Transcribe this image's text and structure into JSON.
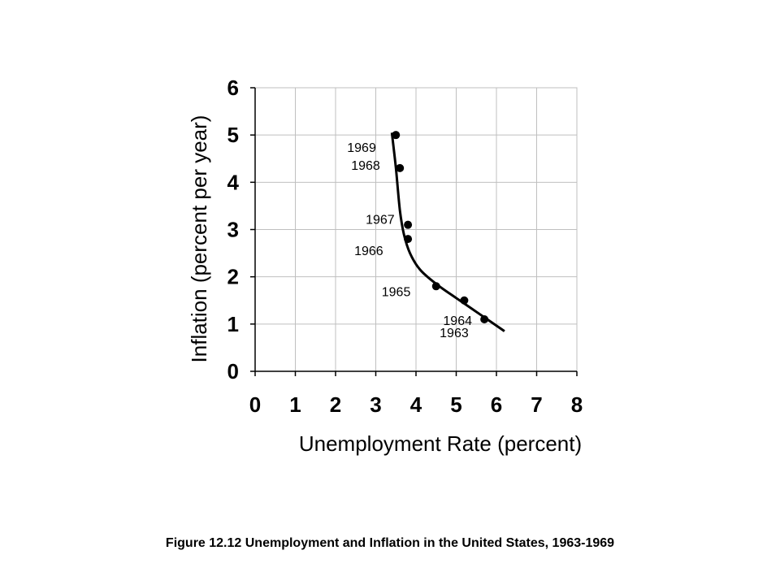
{
  "caption": "Figure 12.12 Unemployment and Inflation in the United States, 1963-1969",
  "chart_data": {
    "type": "scatter",
    "xlabel": "Unemployment Rate (percent)",
    "ylabel": "Inflation (percent per year)",
    "xlim": [
      0,
      8
    ],
    "ylim": [
      0,
      6
    ],
    "x_ticks": [
      0,
      1,
      2,
      3,
      4,
      5,
      6,
      7,
      8
    ],
    "y_ticks": [
      0,
      1,
      2,
      3,
      4,
      5,
      6
    ],
    "grid": true,
    "points": [
      {
        "label": "1963",
        "x": 5.7,
        "y": 1.1
      },
      {
        "label": "1964",
        "x": 5.2,
        "y": 1.5
      },
      {
        "label": "1965",
        "x": 4.5,
        "y": 1.8
      },
      {
        "label": "1966",
        "x": 3.8,
        "y": 2.8
      },
      {
        "label": "1967",
        "x": 3.8,
        "y": 3.1
      },
      {
        "label": "1968",
        "x": 3.6,
        "y": 4.3
      },
      {
        "label": "1969",
        "x": 3.5,
        "y": 5.0
      }
    ],
    "curve": [
      [
        3.4,
        5.05
      ],
      [
        3.5,
        4.3
      ],
      [
        3.6,
        3.4
      ],
      [
        3.7,
        2.9
      ],
      [
        3.85,
        2.5
      ],
      [
        4.1,
        2.15
      ],
      [
        4.5,
        1.85
      ],
      [
        5.0,
        1.55
      ],
      [
        5.6,
        1.2
      ],
      [
        6.2,
        0.85
      ]
    ],
    "marker_color": "#000000",
    "line_color": "#000000",
    "grid_color": "#bfbfbf"
  }
}
